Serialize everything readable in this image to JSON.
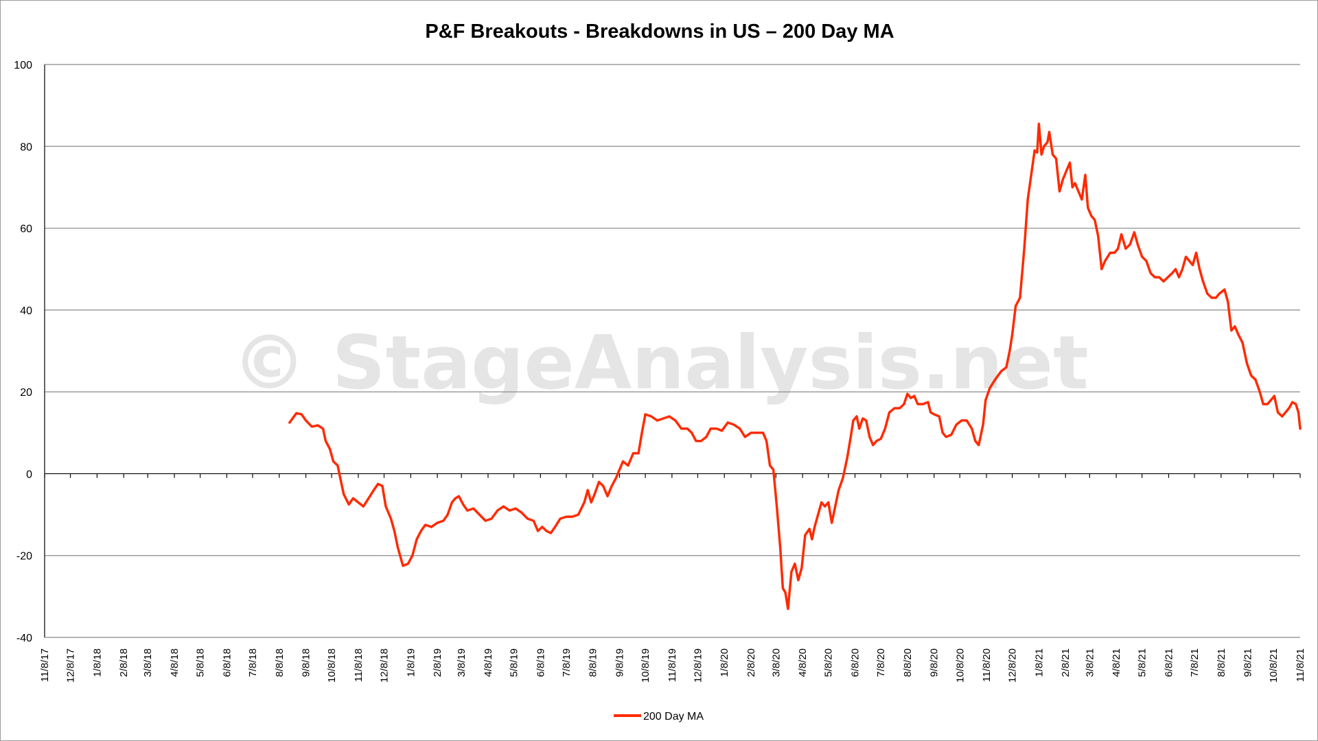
{
  "watermark": "© StageAnalysis.net",
  "chart_data": {
    "type": "line",
    "title": "P&F Breakouts - Breakdowns in US – 200 Day MA",
    "xlabel": "",
    "ylabel": "",
    "ylim": [
      -40,
      100
    ],
    "yticks": [
      -40,
      -20,
      0,
      20,
      40,
      60,
      80,
      100
    ],
    "x_tick_labels": [
      "11/8/17",
      "12/8/17",
      "1/8/18",
      "2/8/18",
      "3/8/18",
      "4/8/18",
      "5/8/18",
      "6/8/18",
      "7/8/18",
      "8/8/18",
      "9/8/18",
      "10/8/18",
      "11/8/18",
      "12/8/18",
      "1/8/19",
      "2/8/19",
      "3/8/19",
      "4/8/19",
      "5/8/19",
      "6/8/19",
      "7/8/19",
      "8/8/19",
      "9/8/19",
      "10/8/19",
      "11/8/19",
      "12/8/19",
      "1/8/20",
      "2/8/20",
      "3/8/20",
      "4/8/20",
      "5/8/20",
      "6/8/20",
      "7/8/20",
      "8/8/20",
      "9/8/20",
      "10/8/20",
      "11/8/20",
      "12/8/20",
      "1/8/21",
      "2/8/21",
      "3/8/21",
      "4/8/21",
      "5/8/21",
      "6/8/21",
      "7/8/21",
      "8/8/21",
      "9/8/21",
      "10/8/21",
      "11/8/21"
    ],
    "grid": true,
    "legend_position": "bottom",
    "series": [
      {
        "name": "200 Day MA",
        "color": "#ff2a00",
        "points": [
          [
            "2018-08-20",
            12.5
          ],
          [
            "2018-08-28",
            14.8
          ],
          [
            "2018-09-03",
            14.5
          ],
          [
            "2018-09-08",
            13
          ],
          [
            "2018-09-15",
            11.5
          ],
          [
            "2018-09-22",
            11.8
          ],
          [
            "2018-09-28",
            11
          ],
          [
            "2018-10-01",
            8
          ],
          [
            "2018-10-06",
            6
          ],
          [
            "2018-10-10",
            3
          ],
          [
            "2018-10-15",
            2
          ],
          [
            "2018-10-18",
            -1
          ],
          [
            "2018-10-22",
            -5
          ],
          [
            "2018-10-28",
            -7.5
          ],
          [
            "2018-11-02",
            -6
          ],
          [
            "2018-11-08",
            -7
          ],
          [
            "2018-11-14",
            -8
          ],
          [
            "2018-11-20",
            -6
          ],
          [
            "2018-11-26",
            -4
          ],
          [
            "2018-12-01",
            -2.5
          ],
          [
            "2018-12-06",
            -3
          ],
          [
            "2018-12-10",
            -8
          ],
          [
            "2018-12-16",
            -11
          ],
          [
            "2018-12-20",
            -14
          ],
          [
            "2018-12-24",
            -18
          ],
          [
            "2018-12-30",
            -22.5
          ],
          [
            "2019-01-05",
            -22
          ],
          [
            "2019-01-10",
            -20
          ],
          [
            "2019-01-15",
            -16
          ],
          [
            "2019-01-20",
            -14
          ],
          [
            "2019-01-25",
            -12.5
          ],
          [
            "2019-02-01",
            -13
          ],
          [
            "2019-02-08",
            -12
          ],
          [
            "2019-02-15",
            -11.5
          ],
          [
            "2019-02-20",
            -10
          ],
          [
            "2019-02-25",
            -7
          ],
          [
            "2019-03-01",
            -6
          ],
          [
            "2019-03-05",
            -5.5
          ],
          [
            "2019-03-10",
            -7.5
          ],
          [
            "2019-03-15",
            -9
          ],
          [
            "2019-03-22",
            -8.5
          ],
          [
            "2019-03-29",
            -10
          ],
          [
            "2019-04-05",
            -11.5
          ],
          [
            "2019-04-12",
            -11
          ],
          [
            "2019-04-19",
            -9
          ],
          [
            "2019-04-26",
            -8
          ],
          [
            "2019-05-03",
            -9
          ],
          [
            "2019-05-10",
            -8.5
          ],
          [
            "2019-05-17",
            -9.5
          ],
          [
            "2019-05-24",
            -11
          ],
          [
            "2019-05-31",
            -11.5
          ],
          [
            "2019-06-05",
            -14
          ],
          [
            "2019-06-10",
            -13
          ],
          [
            "2019-06-15",
            -14
          ],
          [
            "2019-06-20",
            -14.5
          ],
          [
            "2019-06-25",
            -13
          ],
          [
            "2019-07-01",
            -11
          ],
          [
            "2019-07-08",
            -10.5
          ],
          [
            "2019-07-15",
            -10.5
          ],
          [
            "2019-07-22",
            -10
          ],
          [
            "2019-07-29",
            -7
          ],
          [
            "2019-08-02",
            -4
          ],
          [
            "2019-08-06",
            -7
          ],
          [
            "2019-08-10",
            -5
          ],
          [
            "2019-08-15",
            -2
          ],
          [
            "2019-08-20",
            -3
          ],
          [
            "2019-08-25",
            -5.5
          ],
          [
            "2019-08-30",
            -3
          ],
          [
            "2019-09-04",
            -1
          ],
          [
            "2019-09-08",
            1
          ],
          [
            "2019-09-12",
            3
          ],
          [
            "2019-09-18",
            2
          ],
          [
            "2019-09-24",
            5
          ],
          [
            "2019-09-30",
            5
          ],
          [
            "2019-10-04",
            10
          ],
          [
            "2019-10-08",
            14.5
          ],
          [
            "2019-10-15",
            14
          ],
          [
            "2019-10-22",
            13
          ],
          [
            "2019-10-29",
            13.5
          ],
          [
            "2019-11-05",
            14
          ],
          [
            "2019-11-12",
            13
          ],
          [
            "2019-11-19",
            11
          ],
          [
            "2019-11-26",
            11
          ],
          [
            "2019-12-01",
            10
          ],
          [
            "2019-12-06",
            8
          ],
          [
            "2019-12-12",
            8
          ],
          [
            "2019-12-18",
            9
          ],
          [
            "2019-12-23",
            11
          ],
          [
            "2019-12-30",
            11
          ],
          [
            "2020-01-05",
            10.5
          ],
          [
            "2020-01-12",
            12.5
          ],
          [
            "2020-01-19",
            12
          ],
          [
            "2020-01-26",
            11
          ],
          [
            "2020-02-01",
            9
          ],
          [
            "2020-02-08",
            10
          ],
          [
            "2020-02-15",
            10
          ],
          [
            "2020-02-22",
            10
          ],
          [
            "2020-02-26",
            8
          ],
          [
            "2020-03-01",
            2
          ],
          [
            "2020-03-05",
            1
          ],
          [
            "2020-03-09",
            -8
          ],
          [
            "2020-03-13",
            -18
          ],
          [
            "2020-03-16",
            -28
          ],
          [
            "2020-03-19",
            -29
          ],
          [
            "2020-03-22",
            -33
          ],
          [
            "2020-03-26",
            -24
          ],
          [
            "2020-03-30",
            -22
          ],
          [
            "2020-04-03",
            -26
          ],
          [
            "2020-04-07",
            -23
          ],
          [
            "2020-04-11",
            -15
          ],
          [
            "2020-04-16",
            -13.5
          ],
          [
            "2020-04-19",
            -16
          ],
          [
            "2020-04-22",
            -13
          ],
          [
            "2020-04-26",
            -10
          ],
          [
            "2020-04-30",
            -7
          ],
          [
            "2020-05-04",
            -8
          ],
          [
            "2020-05-08",
            -7
          ],
          [
            "2020-05-12",
            -12
          ],
          [
            "2020-05-16",
            -8
          ],
          [
            "2020-05-20",
            -4
          ],
          [
            "2020-05-25",
            -1
          ],
          [
            "2020-05-30",
            4
          ],
          [
            "2020-06-03",
            9
          ],
          [
            "2020-06-06",
            13
          ],
          [
            "2020-06-10",
            14
          ],
          [
            "2020-06-13",
            11
          ],
          [
            "2020-06-17",
            13.5
          ],
          [
            "2020-06-21",
            13
          ],
          [
            "2020-06-25",
            9
          ],
          [
            "2020-06-29",
            7
          ],
          [
            "2020-07-03",
            8
          ],
          [
            "2020-07-08",
            8.5
          ],
          [
            "2020-07-13",
            11
          ],
          [
            "2020-07-18",
            15
          ],
          [
            "2020-07-24",
            16
          ],
          [
            "2020-07-30",
            16
          ],
          [
            "2020-08-04",
            17
          ],
          [
            "2020-08-08",
            19.5
          ],
          [
            "2020-08-12",
            18.5
          ],
          [
            "2020-08-16",
            19
          ],
          [
            "2020-08-20",
            17
          ],
          [
            "2020-08-26",
            17
          ],
          [
            "2020-09-01",
            17.5
          ],
          [
            "2020-09-04",
            15
          ],
          [
            "2020-09-08",
            14.5
          ],
          [
            "2020-09-14",
            14
          ],
          [
            "2020-09-18",
            10
          ],
          [
            "2020-09-22",
            9
          ],
          [
            "2020-09-28",
            9.5
          ],
          [
            "2020-10-04",
            12
          ],
          [
            "2020-10-10",
            13
          ],
          [
            "2020-10-16",
            13
          ],
          [
            "2020-10-22",
            11
          ],
          [
            "2020-10-26",
            8
          ],
          [
            "2020-10-30",
            7
          ],
          [
            "2020-11-04",
            12
          ],
          [
            "2020-11-07",
            18
          ],
          [
            "2020-11-12",
            21
          ],
          [
            "2020-11-18",
            23
          ],
          [
            "2020-11-25",
            25
          ],
          [
            "2020-12-01",
            26
          ],
          [
            "2020-12-05",
            30
          ],
          [
            "2020-12-08",
            34
          ],
          [
            "2020-12-12",
            41
          ],
          [
            "2020-12-17",
            43
          ],
          [
            "2020-12-22",
            55
          ],
          [
            "2020-12-26",
            67
          ],
          [
            "2020-12-30",
            73
          ],
          [
            "2021-01-03",
            79
          ],
          [
            "2021-01-06",
            78.5
          ],
          [
            "2021-01-08",
            85.5
          ],
          [
            "2021-01-11",
            78
          ],
          [
            "2021-01-14",
            80
          ],
          [
            "2021-01-18",
            81
          ],
          [
            "2021-01-20",
            83.5
          ],
          [
            "2021-01-24",
            78
          ],
          [
            "2021-01-28",
            77
          ],
          [
            "2021-02-01",
            69
          ],
          [
            "2021-02-05",
            72
          ],
          [
            "2021-02-09",
            74
          ],
          [
            "2021-02-13",
            76
          ],
          [
            "2021-02-16",
            70
          ],
          [
            "2021-02-19",
            71
          ],
          [
            "2021-02-23",
            69
          ],
          [
            "2021-02-27",
            67
          ],
          [
            "2021-03-03",
            73
          ],
          [
            "2021-03-06",
            65
          ],
          [
            "2021-03-10",
            63
          ],
          [
            "2021-03-14",
            62
          ],
          [
            "2021-03-18",
            58
          ],
          [
            "2021-03-22",
            50
          ],
          [
            "2021-03-26",
            52
          ],
          [
            "2021-04-01",
            54
          ],
          [
            "2021-04-06",
            54
          ],
          [
            "2021-04-10",
            55
          ],
          [
            "2021-04-14",
            58.5
          ],
          [
            "2021-04-19",
            55
          ],
          [
            "2021-04-24",
            56
          ],
          [
            "2021-04-29",
            59
          ],
          [
            "2021-05-03",
            56
          ],
          [
            "2021-05-08",
            53
          ],
          [
            "2021-05-13",
            52
          ],
          [
            "2021-05-18",
            49
          ],
          [
            "2021-05-23",
            48
          ],
          [
            "2021-05-28",
            48
          ],
          [
            "2021-06-02",
            47
          ],
          [
            "2021-06-07",
            48
          ],
          [
            "2021-06-12",
            49
          ],
          [
            "2021-06-16",
            50
          ],
          [
            "2021-06-20",
            48
          ],
          [
            "2021-06-24",
            50
          ],
          [
            "2021-06-28",
            53
          ],
          [
            "2021-07-02",
            52
          ],
          [
            "2021-07-06",
            51
          ],
          [
            "2021-07-10",
            54
          ],
          [
            "2021-07-14",
            50
          ],
          [
            "2021-07-18",
            47
          ],
          [
            "2021-07-23",
            44
          ],
          [
            "2021-07-28",
            43
          ],
          [
            "2021-08-02",
            43
          ],
          [
            "2021-08-06",
            44
          ],
          [
            "2021-08-12",
            45
          ],
          [
            "2021-08-16",
            42
          ],
          [
            "2021-08-20",
            35
          ],
          [
            "2021-08-24",
            36
          ],
          [
            "2021-08-28",
            34
          ],
          [
            "2021-09-02",
            32
          ],
          [
            "2021-09-07",
            27
          ],
          [
            "2021-09-12",
            24
          ],
          [
            "2021-09-17",
            23
          ],
          [
            "2021-09-22",
            20
          ],
          [
            "2021-09-26",
            17
          ],
          [
            "2021-10-01",
            17
          ],
          [
            "2021-10-05",
            18
          ],
          [
            "2021-10-09",
            19
          ],
          [
            "2021-10-13",
            15
          ],
          [
            "2021-10-18",
            14
          ],
          [
            "2021-10-22",
            15
          ],
          [
            "2021-10-26",
            16
          ],
          [
            "2021-10-30",
            17.5
          ],
          [
            "2021-11-03",
            17
          ],
          [
            "2021-11-06",
            15
          ],
          [
            "2021-11-08",
            11
          ]
        ]
      }
    ]
  }
}
